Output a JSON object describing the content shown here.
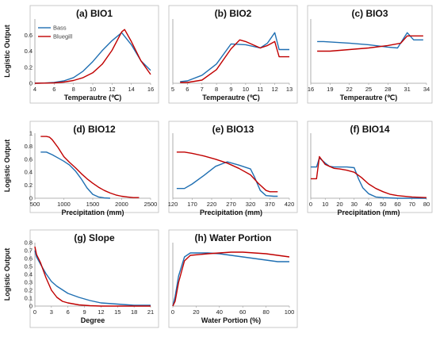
{
  "colors": {
    "bass": "#1f6fb2",
    "bluegill": "#c00000",
    "axis": "#9a9a9a",
    "frame": "#bdbdbd"
  },
  "legend": [
    "Bass",
    "Bluegill"
  ],
  "chart_data": [
    {
      "type": "line",
      "title": "(a) BIO1",
      "xlabel": "Temperautre (℃)",
      "ylabel": "Logistic Output",
      "xlim": [
        4,
        16
      ],
      "ylim": [
        0,
        0.8
      ],
      "xticks": [
        4,
        6,
        8,
        10,
        12,
        14,
        16
      ],
      "yticks": [
        0,
        0.2,
        0.4,
        0.6
      ],
      "series": [
        {
          "name": "Bass",
          "x": [
            4,
            5,
            6,
            7,
            8,
            9,
            10,
            11,
            12,
            13,
            14,
            15,
            16
          ],
          "y": [
            0,
            0.003,
            0.01,
            0.03,
            0.07,
            0.15,
            0.27,
            0.41,
            0.53,
            0.63,
            0.48,
            0.28,
            0.16
          ]
        },
        {
          "name": "Bluegill",
          "x": [
            4,
            5,
            6,
            7,
            8,
            9,
            10,
            11,
            12,
            13,
            13.3,
            14,
            15,
            16
          ],
          "y": [
            0,
            0.002,
            0.005,
            0.015,
            0.035,
            0.07,
            0.13,
            0.24,
            0.41,
            0.64,
            0.67,
            0.52,
            0.28,
            0.11
          ]
        }
      ]
    },
    {
      "type": "line",
      "title": "(b) BIO2",
      "xlabel": "Temperautre (℃)",
      "ylabel": "",
      "xlim": [
        5,
        13
      ],
      "ylim": [
        0,
        0.8
      ],
      "xticks": [
        5,
        6,
        7,
        8,
        9,
        10,
        11,
        12,
        13
      ],
      "yticks": [],
      "series": [
        {
          "name": "Bass",
          "x": [
            5.5,
            6,
            7,
            8,
            9,
            10,
            11,
            11.5,
            12,
            12.3,
            13
          ],
          "y": [
            0.02,
            0.03,
            0.1,
            0.24,
            0.49,
            0.48,
            0.44,
            0.5,
            0.63,
            0.42,
            0.42
          ]
        },
        {
          "name": "Bluegill",
          "x": [
            5.5,
            6,
            7,
            8,
            9,
            9.6,
            10,
            11,
            11.5,
            12,
            12.3,
            13
          ],
          "y": [
            0.01,
            0.01,
            0.04,
            0.17,
            0.43,
            0.54,
            0.52,
            0.44,
            0.47,
            0.52,
            0.33,
            0.33
          ]
        }
      ]
    },
    {
      "type": "line",
      "title": "(c) BIO3",
      "xlabel": "Temperautre (℃)",
      "ylabel": "",
      "xlim": [
        16,
        34
      ],
      "ylim": [
        0,
        0.8
      ],
      "xticks": [
        16,
        19,
        22,
        25,
        28,
        31,
        34
      ],
      "yticks": [],
      "series": [
        {
          "name": "Bass",
          "x": [
            17,
            18,
            22,
            25,
            28,
            29.5,
            31,
            32,
            33.5
          ],
          "y": [
            0.52,
            0.52,
            0.5,
            0.48,
            0.45,
            0.44,
            0.63,
            0.54,
            0.54
          ]
        },
        {
          "name": "Bluegill",
          "x": [
            17,
            19,
            22,
            25,
            28,
            30,
            31,
            33.5
          ],
          "y": [
            0.4,
            0.4,
            0.42,
            0.44,
            0.47,
            0.5,
            0.59,
            0.59
          ]
        }
      ]
    },
    {
      "type": "line",
      "title": "(d) BIO12",
      "xlabel": "Precipitation (mm)",
      "ylabel": "Logistic Output",
      "xlim": [
        500,
        2500
      ],
      "ylim": [
        0,
        1
      ],
      "xticks": [
        500,
        1000,
        1500,
        2000,
        2500
      ],
      "yticks": [
        0,
        0.2,
        0.4,
        0.6,
        0.8,
        1
      ],
      "series": [
        {
          "name": "Bass",
          "x": [
            600,
            700,
            800,
            900,
            1000,
            1100,
            1200,
            1300,
            1400,
            1500,
            1600,
            1700,
            1800
          ],
          "y": [
            0.71,
            0.71,
            0.67,
            0.62,
            0.57,
            0.51,
            0.42,
            0.3,
            0.16,
            0.06,
            0.02,
            0.005,
            0
          ]
        },
        {
          "name": "Bluegill",
          "x": [
            600,
            700,
            750,
            800,
            900,
            1000,
            1100,
            1200,
            1300,
            1400,
            1500,
            1600,
            1700,
            1800,
            1900,
            2000,
            2100,
            2200,
            2300
          ],
          "y": [
            0.95,
            0.95,
            0.94,
            0.9,
            0.78,
            0.64,
            0.55,
            0.47,
            0.38,
            0.3,
            0.23,
            0.17,
            0.12,
            0.08,
            0.05,
            0.03,
            0.02,
            0.01,
            0.01
          ]
        }
      ]
    },
    {
      "type": "line",
      "title": "(e) BIO13",
      "xlabel": "Precipitation (mm)",
      "ylabel": "",
      "xlim": [
        120,
        420
      ],
      "ylim": [
        0,
        1
      ],
      "xticks": [
        120,
        170,
        220,
        270,
        320,
        370,
        420
      ],
      "yticks": [],
      "series": [
        {
          "name": "Bass",
          "x": [
            130,
            150,
            170,
            200,
            230,
            260,
            290,
            320,
            330,
            345,
            360,
            380,
            390
          ],
          "y": [
            0.15,
            0.15,
            0.22,
            0.35,
            0.49,
            0.56,
            0.51,
            0.45,
            0.33,
            0.12,
            0.04,
            0.03,
            0.03
          ]
        },
        {
          "name": "Bluegill",
          "x": [
            130,
            150,
            170,
            200,
            230,
            260,
            290,
            320,
            340,
            360,
            370,
            390
          ],
          "y": [
            0.71,
            0.71,
            0.69,
            0.65,
            0.6,
            0.54,
            0.46,
            0.36,
            0.23,
            0.12,
            0.1,
            0.1
          ]
        }
      ]
    },
    {
      "type": "line",
      "title": "(f) BIO14",
      "xlabel": "Precipitation (mm)",
      "ylabel": "",
      "xlim": [
        0,
        80
      ],
      "ylim": [
        0,
        1
      ],
      "xticks": [
        0,
        10,
        20,
        30,
        40,
        50,
        60,
        70,
        80
      ],
      "yticks": [],
      "series": [
        {
          "name": "Bass",
          "x": [
            0,
            4,
            6,
            10,
            13,
            16,
            20,
            25,
            30,
            33,
            36,
            40,
            45,
            50,
            60,
            70,
            80
          ],
          "y": [
            0.48,
            0.48,
            0.62,
            0.54,
            0.49,
            0.48,
            0.48,
            0.48,
            0.47,
            0.3,
            0.16,
            0.07,
            0.02,
            0.01,
            0,
            0,
            0
          ]
        },
        {
          "name": "Bluegill",
          "x": [
            0,
            4,
            6,
            10,
            13,
            16,
            20,
            25,
            30,
            35,
            40,
            45,
            50,
            55,
            60,
            70,
            80
          ],
          "y": [
            0.3,
            0.3,
            0.64,
            0.52,
            0.49,
            0.46,
            0.45,
            0.43,
            0.4,
            0.32,
            0.22,
            0.15,
            0.1,
            0.06,
            0.04,
            0.02,
            0.01
          ]
        }
      ]
    },
    {
      "type": "line",
      "title": "(g) Slope",
      "xlabel": "Degree",
      "ylabel": "Logistic Output",
      "xlim": [
        0,
        21
      ],
      "ylim": [
        0,
        0.8
      ],
      "xticks": [
        0,
        3,
        6,
        9,
        12,
        15,
        18,
        21
      ],
      "yticks": [
        0,
        0.1,
        0.2,
        0.3,
        0.4,
        0.5,
        0.6,
        0.7,
        0.8
      ],
      "series": [
        {
          "name": "Bass",
          "x": [
            0,
            0.3,
            1,
            2,
            3,
            4,
            6,
            8,
            10,
            12,
            14,
            16,
            18,
            21
          ],
          "y": [
            0.7,
            0.62,
            0.53,
            0.41,
            0.31,
            0.25,
            0.16,
            0.11,
            0.07,
            0.04,
            0.03,
            0.02,
            0.01,
            0.01
          ]
        },
        {
          "name": "Bluegill",
          "x": [
            0,
            0.3,
            1,
            2,
            3,
            4,
            5,
            6,
            8,
            10,
            12,
            15,
            21
          ],
          "y": [
            0.75,
            0.65,
            0.55,
            0.36,
            0.2,
            0.11,
            0.06,
            0.04,
            0.015,
            0.005,
            0,
            0,
            0
          ]
        }
      ]
    },
    {
      "type": "line",
      "title": "(h) Water Portion",
      "xlabel": "Water Portion (%)",
      "ylabel": "",
      "xlim": [
        0,
        100
      ],
      "ylim": [
        0,
        0.8
      ],
      "xticks": [
        0,
        20,
        40,
        60,
        80,
        100
      ],
      "yticks": [],
      "series": [
        {
          "name": "Bass",
          "x": [
            0,
            2,
            5,
            10,
            15,
            30,
            40,
            50,
            60,
            70,
            80,
            90,
            100
          ],
          "y": [
            0,
            0.12,
            0.38,
            0.62,
            0.67,
            0.67,
            0.66,
            0.64,
            0.62,
            0.6,
            0.58,
            0.56,
            0.56
          ]
        },
        {
          "name": "Bluegill",
          "x": [
            0,
            2,
            5,
            10,
            15,
            30,
            40,
            50,
            60,
            70,
            80,
            90,
            100
          ],
          "y": [
            0,
            0.06,
            0.3,
            0.57,
            0.64,
            0.66,
            0.67,
            0.68,
            0.68,
            0.67,
            0.66,
            0.64,
            0.62
          ]
        }
      ]
    }
  ]
}
